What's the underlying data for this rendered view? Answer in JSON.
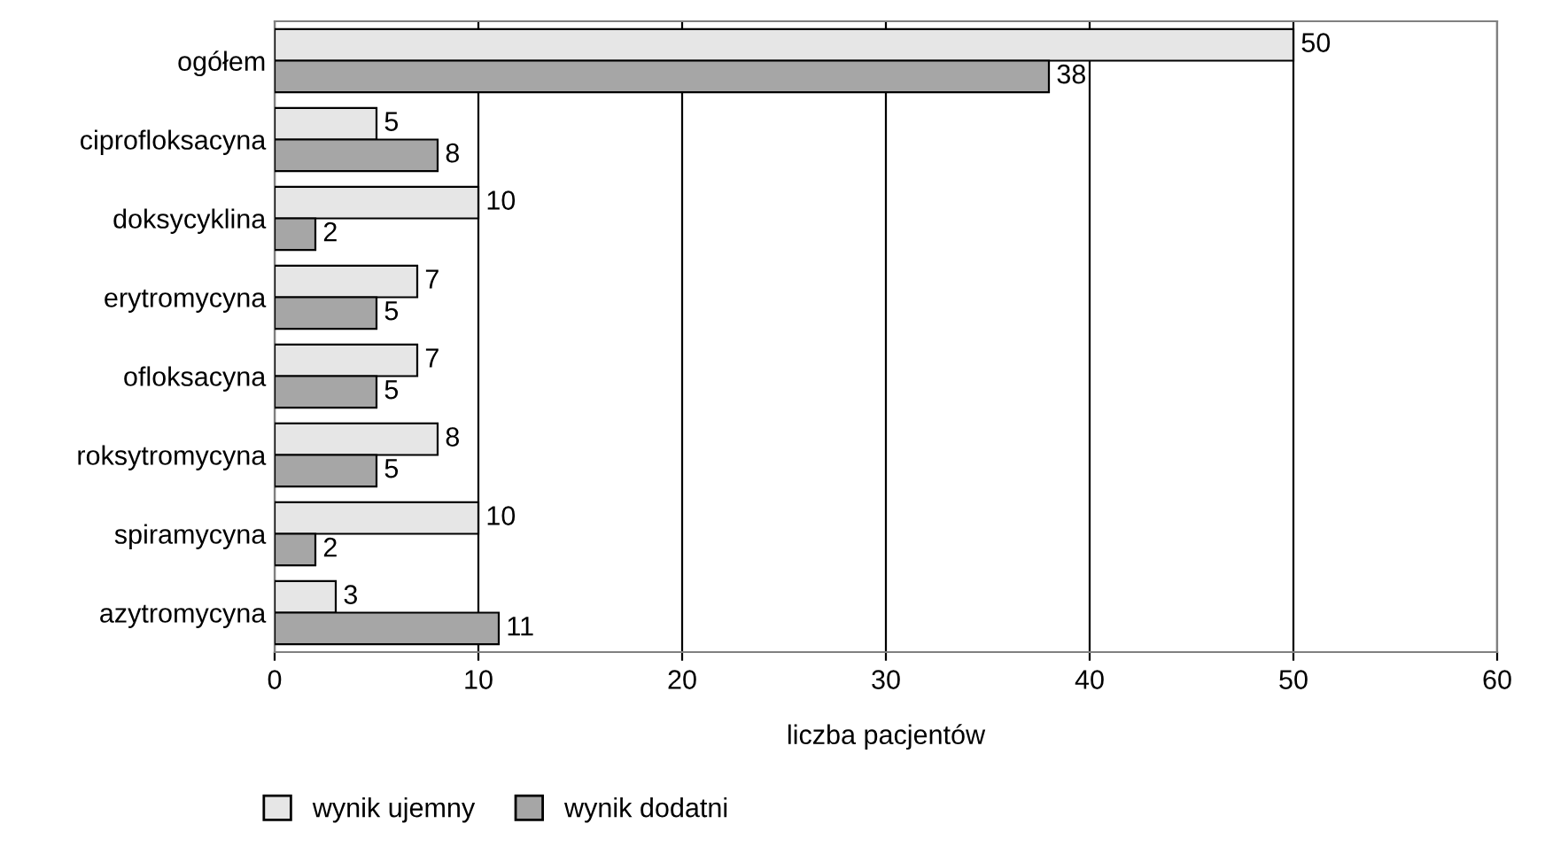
{
  "chart_data": {
    "type": "bar",
    "orientation": "horizontal",
    "xlabel": "liczba pacjentów",
    "categories": [
      "ogółem",
      "ciprofloksacyna",
      "doksycyklina",
      "erytromycyna",
      "ofloksacyna",
      "roksytromycyna",
      "spiramycyna",
      "azytromycyna"
    ],
    "series": [
      {
        "name": "wynik ujemny",
        "color": "#e6e6e6",
        "values": [
          50,
          5,
          10,
          7,
          7,
          8,
          10,
          3
        ]
      },
      {
        "name": "wynik dodatni",
        "color": "#a6a6a6",
        "values": [
          38,
          8,
          2,
          5,
          5,
          5,
          2,
          11
        ]
      }
    ],
    "xlim": [
      0,
      60
    ],
    "xticks": [
      0,
      10,
      20,
      30,
      40,
      50,
      60
    ],
    "grid": "x",
    "legend": "bottom",
    "data_labels": true
  }
}
